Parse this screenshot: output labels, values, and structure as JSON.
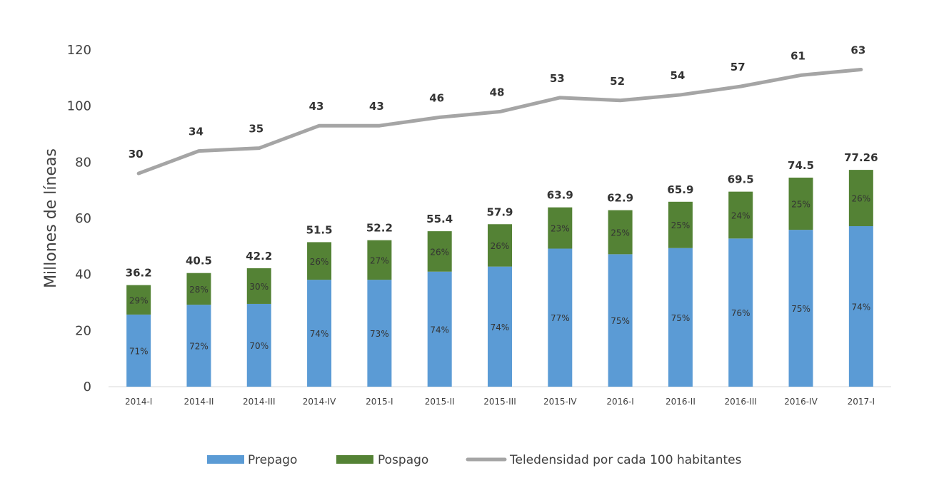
{
  "chart_data": {
    "type": "bar",
    "stacked": true,
    "title": "",
    "xlabel": "",
    "ylabel": "Millones de líneas",
    "ylim": [
      0,
      120
    ],
    "yticks": [
      0,
      20,
      40,
      60,
      80,
      100,
      120
    ],
    "grid": false,
    "legend_position": "bottom",
    "categories": [
      "2014-I",
      "2014-II",
      "2014-III",
      "2014-IV",
      "2015-I",
      "2015-II",
      "2015-III",
      "2015-IV",
      "2016-I",
      "2016-II",
      "2016-III",
      "2016-IV",
      "2017-I"
    ],
    "totals": [
      "36.2",
      "40.5",
      "42.2",
      "51.5",
      "52.2",
      "55.4",
      "57.9",
      "63.9",
      "62.9",
      "65.9",
      "69.5",
      "74.5",
      "77.26"
    ],
    "series": [
      {
        "name": "Prepago",
        "color": "#5b9bd5",
        "values": [
          25.7,
          29.2,
          29.5,
          38.1,
          38.1,
          41.0,
          42.8,
          49.2,
          47.2,
          49.4,
          52.8,
          55.9,
          57.2
        ],
        "labels": [
          "71%",
          "72%",
          "70%",
          "74%",
          "73%",
          "74%",
          "74%",
          "77%",
          "75%",
          "75%",
          "76%",
          "75%",
          "74%"
        ]
      },
      {
        "name": "Pospago",
        "color": "#548235",
        "values": [
          10.5,
          11.3,
          12.7,
          13.4,
          14.1,
          14.4,
          15.1,
          14.7,
          15.7,
          16.5,
          16.7,
          18.6,
          20.06
        ],
        "labels": [
          "29%",
          "28%",
          "30%",
          "26%",
          "27%",
          "26%",
          "26%",
          "23%",
          "25%",
          "25%",
          "24%",
          "25%",
          "26%"
        ]
      },
      {
        "name": "Teledensidad por cada 100 habitantes",
        "type": "line",
        "color": "#a5a5a5",
        "values": [
          76,
          84,
          85,
          93,
          93,
          96,
          98,
          103,
          102,
          104,
          107,
          111,
          113
        ],
        "labels": [
          "30",
          "34",
          "35",
          "43",
          "43",
          "46",
          "48",
          "53",
          "52",
          "54",
          "57",
          "61",
          "63"
        ]
      }
    ]
  }
}
